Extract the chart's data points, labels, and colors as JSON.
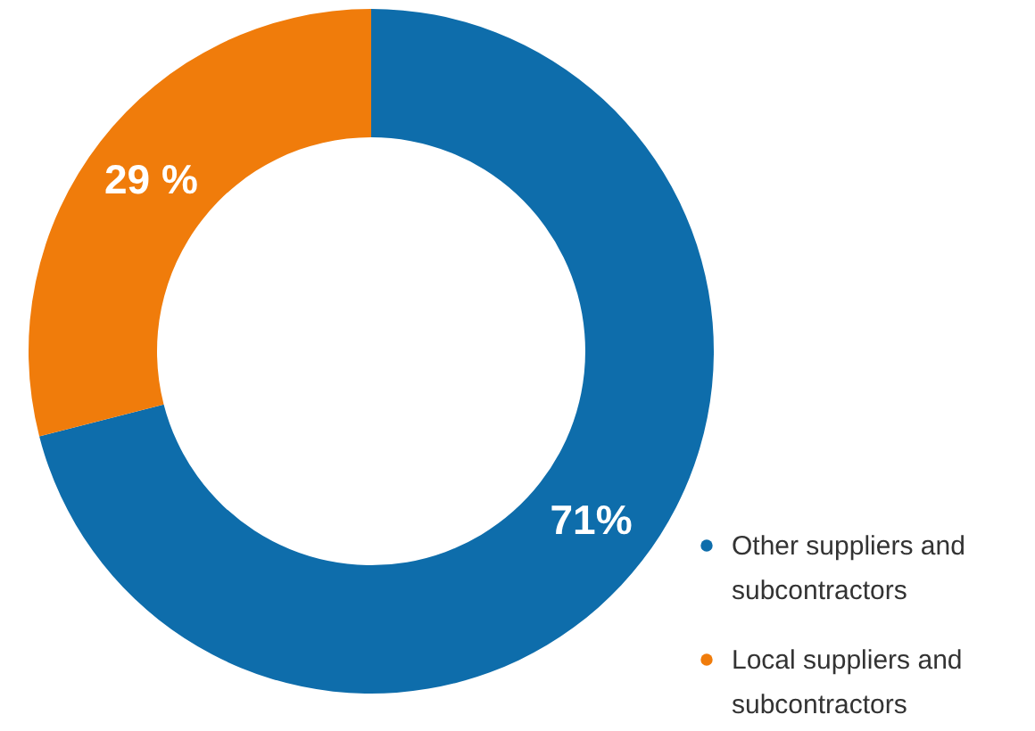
{
  "chart_data": {
    "type": "donut",
    "categories": [
      "Other suppliers and subcontractors",
      "Local suppliers and subcontractors"
    ],
    "values": [
      71,
      29
    ],
    "colors": [
      "#0e6dab",
      "#f07c0b"
    ],
    "value_labels": [
      "71%",
      "29 %"
    ],
    "legend": "bottom right"
  }
}
